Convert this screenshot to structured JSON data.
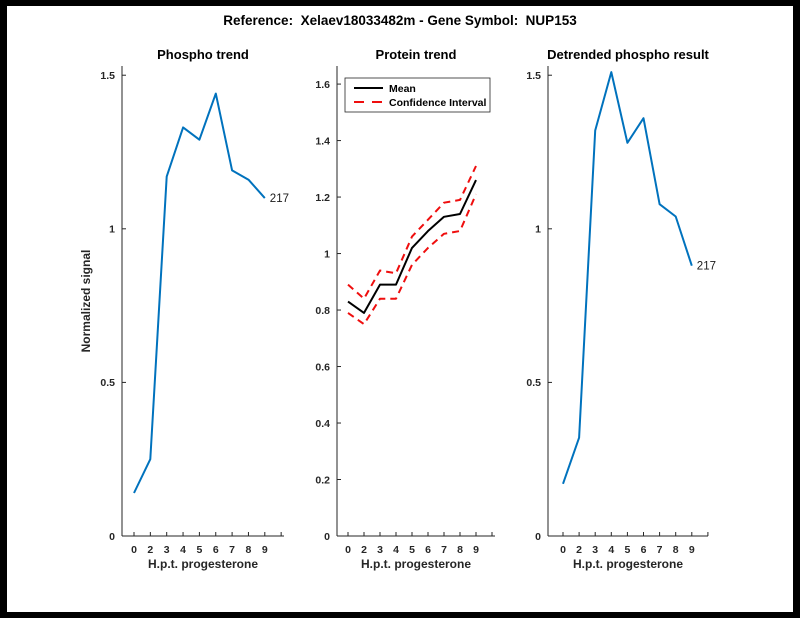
{
  "figure": {
    "title": "Reference:  Xelaev18033482m - Gene Symbol:  NUP153",
    "background": "#ffffff",
    "frame_color": "#000000",
    "axis_color": "#262626",
    "blue": "#0072BD",
    "red": "#ef0e0e"
  },
  "chart_data": [
    {
      "type": "line",
      "title": "Phospho trend",
      "xlabel": "H.p.t. progesterone",
      "ylabel": "Normalized signal",
      "x_tick_labels": [
        "0",
        "2",
        "3",
        "4",
        "5",
        "6",
        "7",
        "8",
        "9"
      ],
      "y_ticks": [
        "0",
        "0.5",
        "1",
        "1.5"
      ],
      "y_tick_values": [
        0,
        0.5,
        1,
        1.5
      ],
      "ylim": [
        0,
        1.53
      ],
      "grid": false,
      "legend": null,
      "series": [
        {
          "name": "phospho",
          "color": "#0072BD",
          "style": "solid",
          "width": 2,
          "values": [
            0.14,
            0.25,
            1.17,
            1.33,
            1.29,
            1.44,
            1.19,
            1.16,
            1.1
          ]
        }
      ],
      "end_label": "217"
    },
    {
      "type": "line",
      "title": "Protein trend",
      "xlabel": "H.p.t. progesterone",
      "ylabel": "",
      "x_tick_labels": [
        "0",
        "2",
        "3",
        "4",
        "5",
        "6",
        "7",
        "8",
        "9"
      ],
      "y_ticks": [
        "0",
        "0.2",
        "0.4",
        "0.6",
        "0.8",
        "1",
        "1.2",
        "1.4",
        "1.6"
      ],
      "y_tick_values": [
        0,
        0.2,
        0.4,
        0.6,
        0.8,
        1,
        1.2,
        1.4,
        1.6
      ],
      "ylim": [
        0,
        1.664
      ],
      "grid": false,
      "legend": {
        "position": "top-left",
        "entries": [
          "Mean",
          "Confidence Interval"
        ]
      },
      "series": [
        {
          "name": "Mean",
          "color": "#000000",
          "style": "solid",
          "width": 2,
          "values": [
            0.83,
            0.79,
            0.89,
            0.89,
            1.02,
            1.08,
            1.13,
            1.14,
            1.26
          ]
        },
        {
          "name": "Confidence Interval",
          "color": "#ef0e0e",
          "style": "dashed",
          "width": 2,
          "values": [
            0.89,
            0.84,
            0.94,
            0.93,
            1.06,
            1.12,
            1.18,
            1.19,
            1.31
          ]
        },
        {
          "name": "Confidence Interval",
          "color": "#ef0e0e",
          "style": "dashed",
          "width": 2,
          "values": [
            0.79,
            0.75,
            0.84,
            0.84,
            0.96,
            1.02,
            1.07,
            1.08,
            1.21
          ]
        }
      ],
      "end_label": null
    },
    {
      "type": "line",
      "title": "Detrended phospho result",
      "xlabel": "H.p.t. progesterone",
      "ylabel": "",
      "x_tick_labels": [
        "0",
        "2",
        "3",
        "4",
        "5",
        "6",
        "7",
        "8",
        "9"
      ],
      "y_ticks": [
        "0",
        "0.5",
        "1",
        "1.5"
      ],
      "y_tick_values": [
        0,
        0.5,
        1,
        1.5
      ],
      "ylim": [
        0,
        1.53
      ],
      "grid": false,
      "legend": null,
      "series": [
        {
          "name": "detrended phospho",
          "color": "#0072BD",
          "style": "solid",
          "width": 2,
          "values": [
            0.17,
            0.32,
            1.32,
            1.51,
            1.28,
            1.36,
            1.08,
            1.04,
            0.88
          ]
        }
      ],
      "end_label": "217"
    }
  ]
}
